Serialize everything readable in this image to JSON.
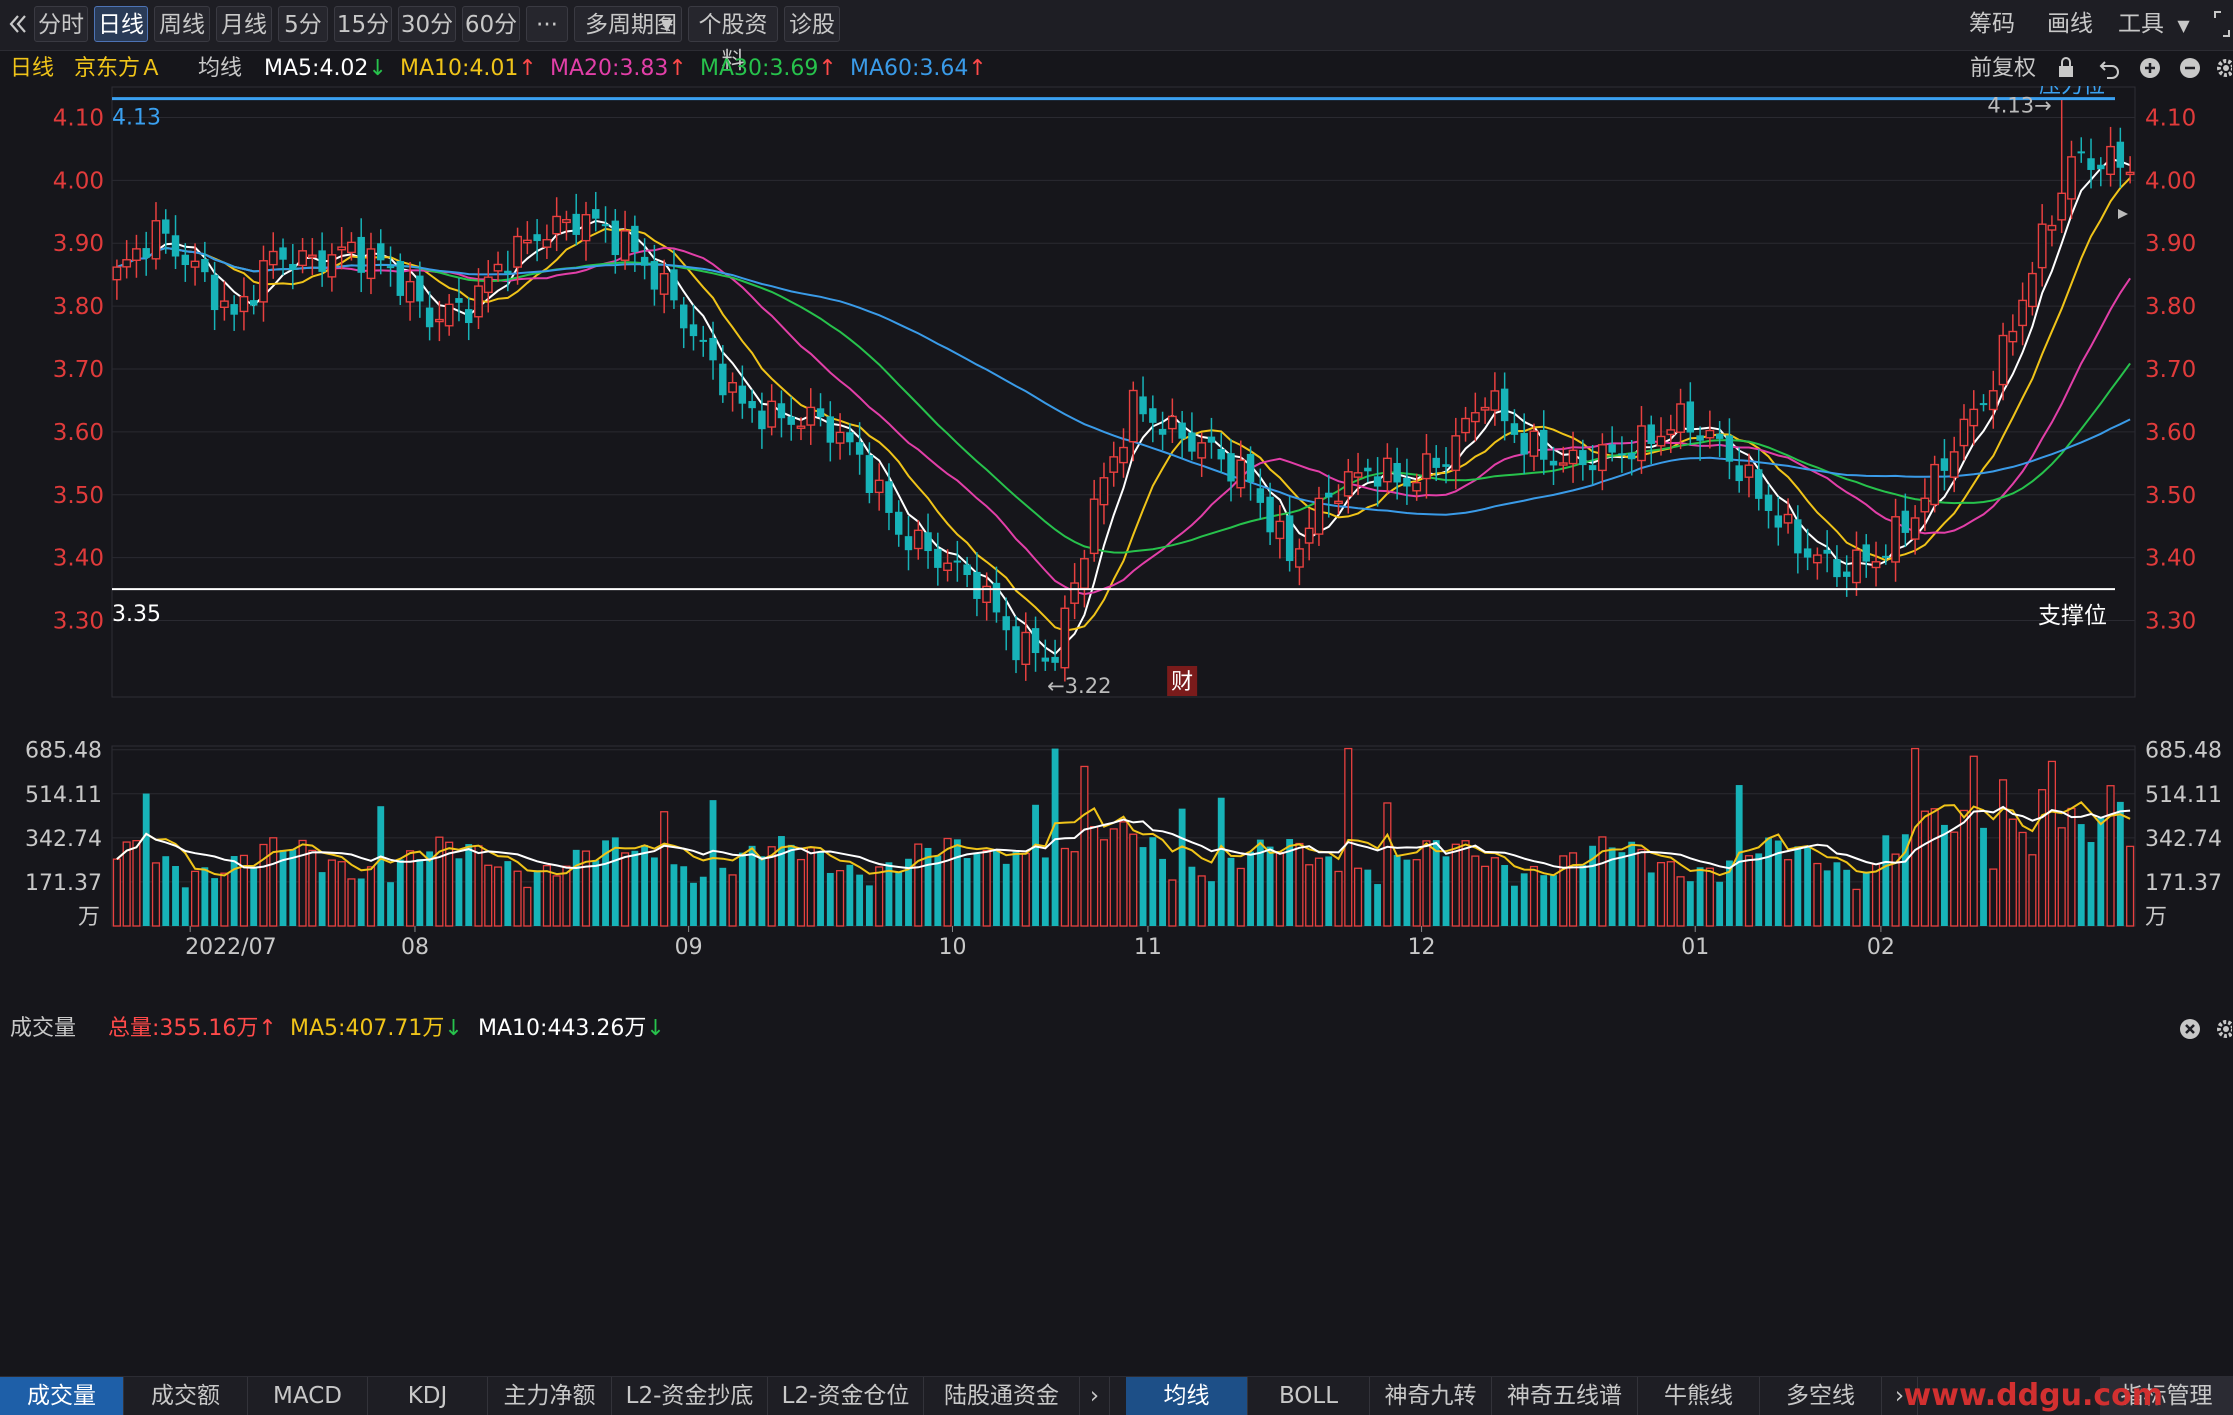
{
  "toolbar": {
    "back_icon": "double-chevron-left-icon",
    "periods": [
      "分时",
      "日线",
      "周线",
      "月线",
      "5分",
      "15分",
      "30分",
      "60分"
    ],
    "active_period": "日线",
    "more": "···",
    "multi_period": "多周期图",
    "stock_info": "个股资料",
    "diagnose": "诊股",
    "right": [
      "筹码",
      "画线",
      "工具"
    ]
  },
  "ma_bar": {
    "kind": "日线",
    "stock": "京东方Ａ",
    "label": "均线",
    "ma5": "MA5:4.02",
    "ma10": "MA10:4.01",
    "ma20": "MA20:3.83",
    "ma30": "MA30:3.69",
    "ma60": "MA60:3.64",
    "restore": "前复权",
    "colors": {
      "ma5": "#ffffff",
      "ma10": "#f0c419",
      "ma20": "#e23fa8",
      "ma30": "#27c24c",
      "ma60": "#3a9be8"
    }
  },
  "price_chart": {
    "y_ticks": [
      "4.10",
      "4.00",
      "3.90",
      "3.80",
      "3.70",
      "3.60",
      "3.50",
      "3.40",
      "3.30"
    ],
    "pressure_value": "4.13",
    "pressure_label": "压力位",
    "high_mark": "4.13→",
    "support_value": "3.35",
    "support_label": "支撑位",
    "low_mark": "←3.22",
    "finance_badge": "财"
  },
  "volume_bar": {
    "label": "成交量",
    "total": "总量:355.16万",
    "ma5": "MA5:407.71万",
    "ma10": "MA10:443.26万"
  },
  "volume_chart": {
    "y_ticks": [
      "685.48",
      "514.11",
      "342.74",
      "171.37"
    ],
    "unit": "万"
  },
  "x_labels": [
    "2022/07",
    "08",
    "09",
    "10",
    "11",
    "12",
    "01",
    "02"
  ],
  "bottom_tabs_left": [
    "成交量",
    "成交额",
    "MACD",
    "KDJ",
    "主力净额",
    "L2-资金抄底",
    "L2-资金仓位",
    "陆股通资金"
  ],
  "bottom_tabs_right": [
    "均线",
    "BOLL",
    "神奇九转",
    "神奇五线谱",
    "牛熊线",
    "多空线"
  ],
  "indicator_manage": "指标管理",
  "watermark": "www.ddgu.com",
  "chart_data": {
    "type": "candlestick",
    "y_range": [
      3.18,
      4.15
    ],
    "support": 3.35,
    "pressure": 4.13,
    "series_close_anchors": [
      [
        0,
        3.85
      ],
      [
        4,
        3.92
      ],
      [
        8,
        3.86
      ],
      [
        12,
        3.78
      ],
      [
        16,
        3.88
      ],
      [
        20,
        3.87
      ],
      [
        24,
        3.89
      ],
      [
        28,
        3.86
      ],
      [
        32,
        3.78
      ],
      [
        36,
        3.8
      ],
      [
        40,
        3.88
      ],
      [
        44,
        3.92
      ],
      [
        48,
        3.94
      ],
      [
        52,
        3.9
      ],
      [
        56,
        3.83
      ],
      [
        60,
        3.73
      ],
      [
        64,
        3.64
      ],
      [
        68,
        3.62
      ],
      [
        72,
        3.62
      ],
      [
        76,
        3.56
      ],
      [
        80,
        3.44
      ],
      [
        84,
        3.4
      ],
      [
        88,
        3.36
      ],
      [
        92,
        3.26
      ],
      [
        96,
        3.24
      ],
      [
        100,
        3.48
      ],
      [
        104,
        3.64
      ],
      [
        108,
        3.6
      ],
      [
        112,
        3.57
      ],
      [
        116,
        3.52
      ],
      [
        120,
        3.4
      ],
      [
        124,
        3.5
      ],
      [
        128,
        3.54
      ],
      [
        132,
        3.52
      ],
      [
        136,
        3.56
      ],
      [
        140,
        3.66
      ],
      [
        144,
        3.58
      ],
      [
        148,
        3.55
      ],
      [
        152,
        3.56
      ],
      [
        156,
        3.58
      ],
      [
        160,
        3.62
      ],
      [
        164,
        3.58
      ],
      [
        168,
        3.5
      ],
      [
        172,
        3.42
      ],
      [
        176,
        3.38
      ],
      [
        180,
        3.4
      ],
      [
        184,
        3.47
      ],
      [
        188,
        3.58
      ],
      [
        192,
        3.68
      ],
      [
        196,
        3.86
      ],
      [
        200,
        4.03
      ],
      [
        204,
        4.03
      ],
      [
        206,
        4.02
      ]
    ],
    "volume_range": [
      0,
      700
    ]
  }
}
